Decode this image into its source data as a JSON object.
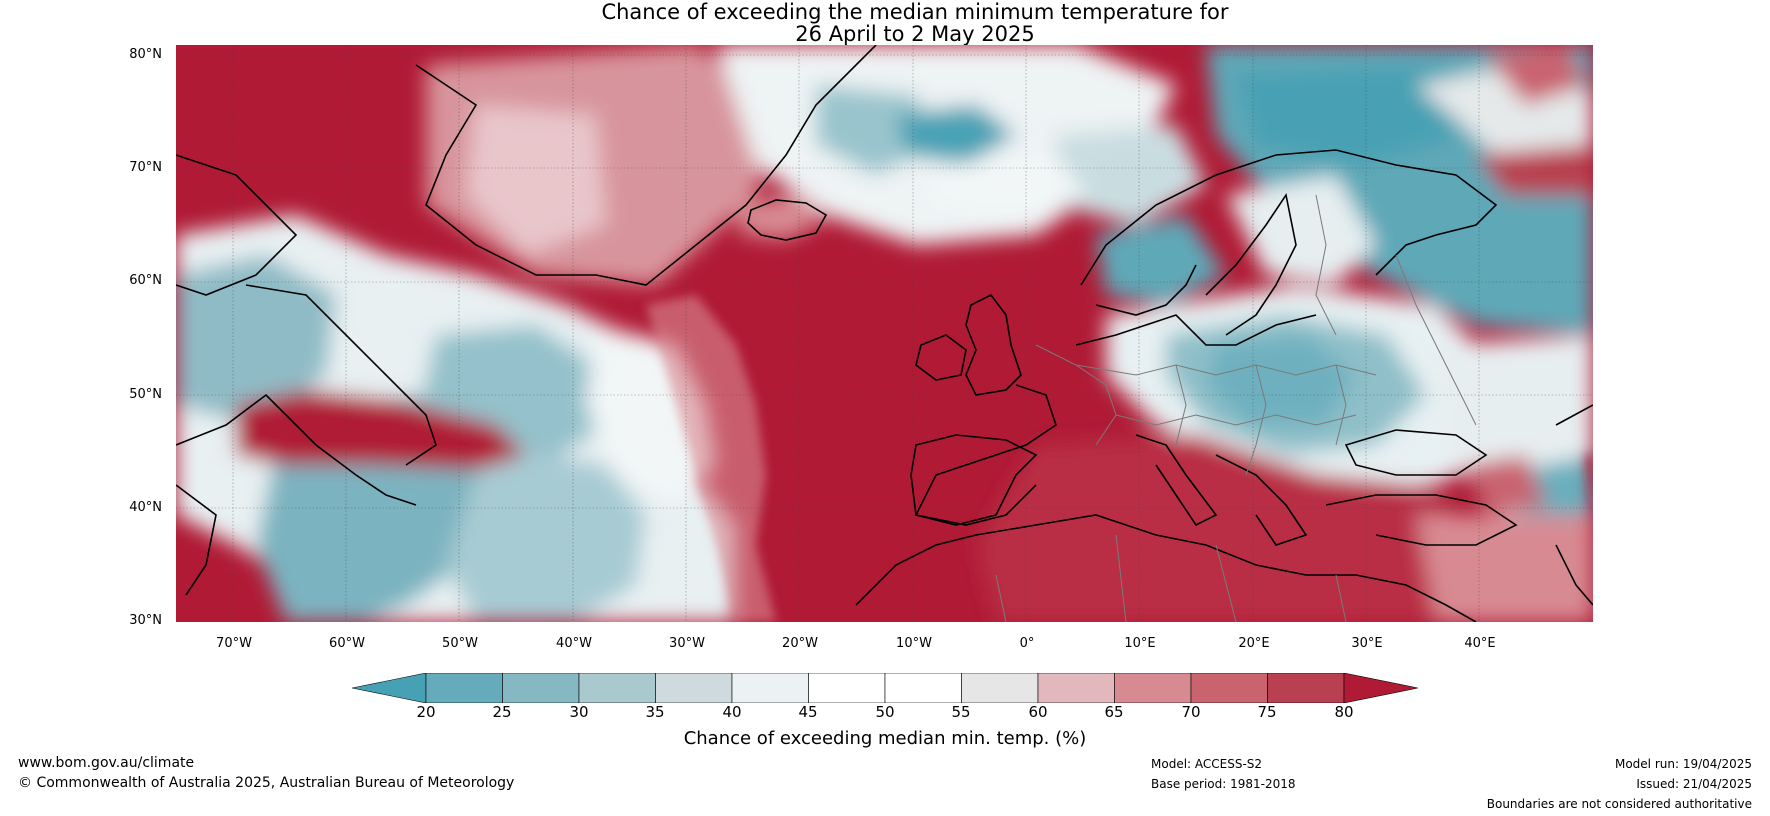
{
  "title": {
    "line1": "Chance of exceeding the median minimum temperature for",
    "line2": "26 April to 2 May 2025"
  },
  "map": {
    "latitude_labels": [
      "80°N",
      "70°N",
      "60°N",
      "50°N",
      "40°N",
      "30°N"
    ],
    "longitude_labels": [
      "70°W",
      "60°W",
      "50°W",
      "40°W",
      "30°W",
      "20°W",
      "10°W",
      "0°",
      "10°E",
      "20°E",
      "30°E",
      "40°E"
    ],
    "extent": {
      "lon_min": -75,
      "lon_max": 50,
      "lat_min": 30,
      "lat_max": 81
    }
  },
  "colorbar": {
    "ticks": [
      "20",
      "25",
      "30",
      "35",
      "40",
      "45",
      "50",
      "55",
      "60",
      "65",
      "70",
      "75",
      "80"
    ],
    "label": "Chance of exceeding median min. temp. (%)",
    "colors": {
      "below_20": "#47a1b4",
      "20_25": "#66abbb",
      "25_30": "#86b8c4",
      "30_35": "#a9c9cf",
      "35_40": "#cfdade",
      "40_45": "#ecf2f3",
      "45_50": "#ffffff",
      "50_55": "#ffffff",
      "55_60": "#e7e6e6",
      "60_65": "#e2b8bc",
      "65_70": "#d88a93",
      "70_75": "#c9646f",
      "75_80": "#b94050",
      "above_80": "#b01a35"
    }
  },
  "footer": {
    "website": "www.bom.gov.au/climate",
    "copyright": "© Commonwealth of Australia 2025, Australian Bureau of Meteorology",
    "model": "Model: ACCESS-S2",
    "base_period": "Base period: 1981-2018",
    "model_run": "Model run: 19/04/2025",
    "issued": "Issued: 21/04/2025",
    "disclaimer": "Boundaries are not considered authoritative"
  }
}
